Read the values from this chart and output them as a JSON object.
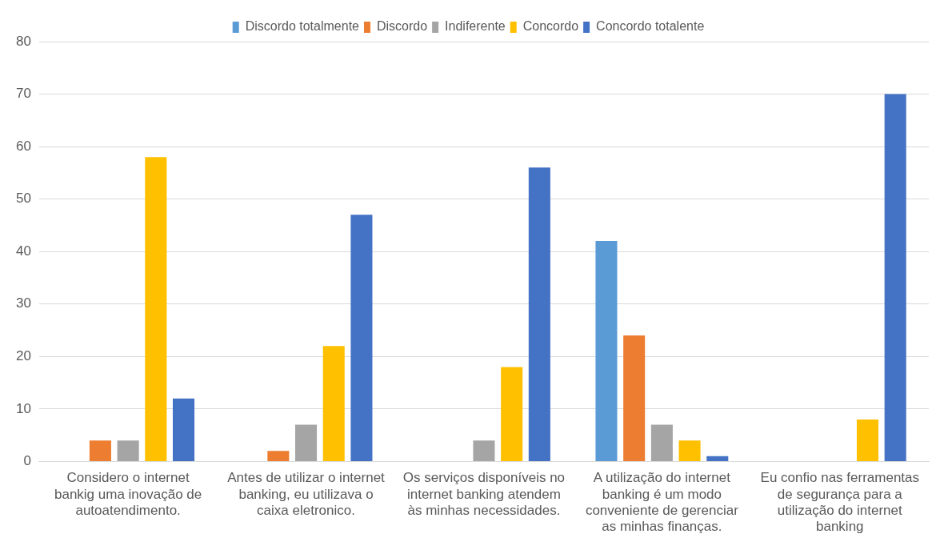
{
  "chart_data": {
    "type": "bar",
    "categories": [
      "Considero o internet bankig uma inovação de autoatendimento.",
      "Antes de utilizar o internet banking, eu utilizava o caixa eletronico.",
      "Os serviços disponíveis no internet banking atendem às minhas necessidades.",
      "A utilização do internet banking é um modo conveniente de gerenciar as minhas finanças.",
      "Eu confio nas ferramentas de segurança para a utilização do internet banking"
    ],
    "series": [
      {
        "name": "Discordo totalmente",
        "color": "#5b9bd5",
        "values": [
          0,
          0,
          0,
          42,
          0
        ]
      },
      {
        "name": "Discordo",
        "color": "#ed7d31",
        "values": [
          4,
          2,
          0,
          24,
          0
        ]
      },
      {
        "name": "Indiferente",
        "color": "#a5a5a5",
        "values": [
          4,
          7,
          4,
          7,
          0
        ]
      },
      {
        "name": "Concordo",
        "color": "#ffc000",
        "values": [
          58,
          22,
          18,
          4,
          8
        ]
      },
      {
        "name": "Concordo totalente",
        "color": "#4472c4",
        "values": [
          12,
          47,
          56,
          1,
          70
        ]
      }
    ],
    "ylim": [
      0,
      80
    ],
    "yticks": [
      0,
      10,
      20,
      30,
      40,
      50,
      60,
      70,
      80
    ],
    "grid": "y",
    "legend": "top"
  }
}
